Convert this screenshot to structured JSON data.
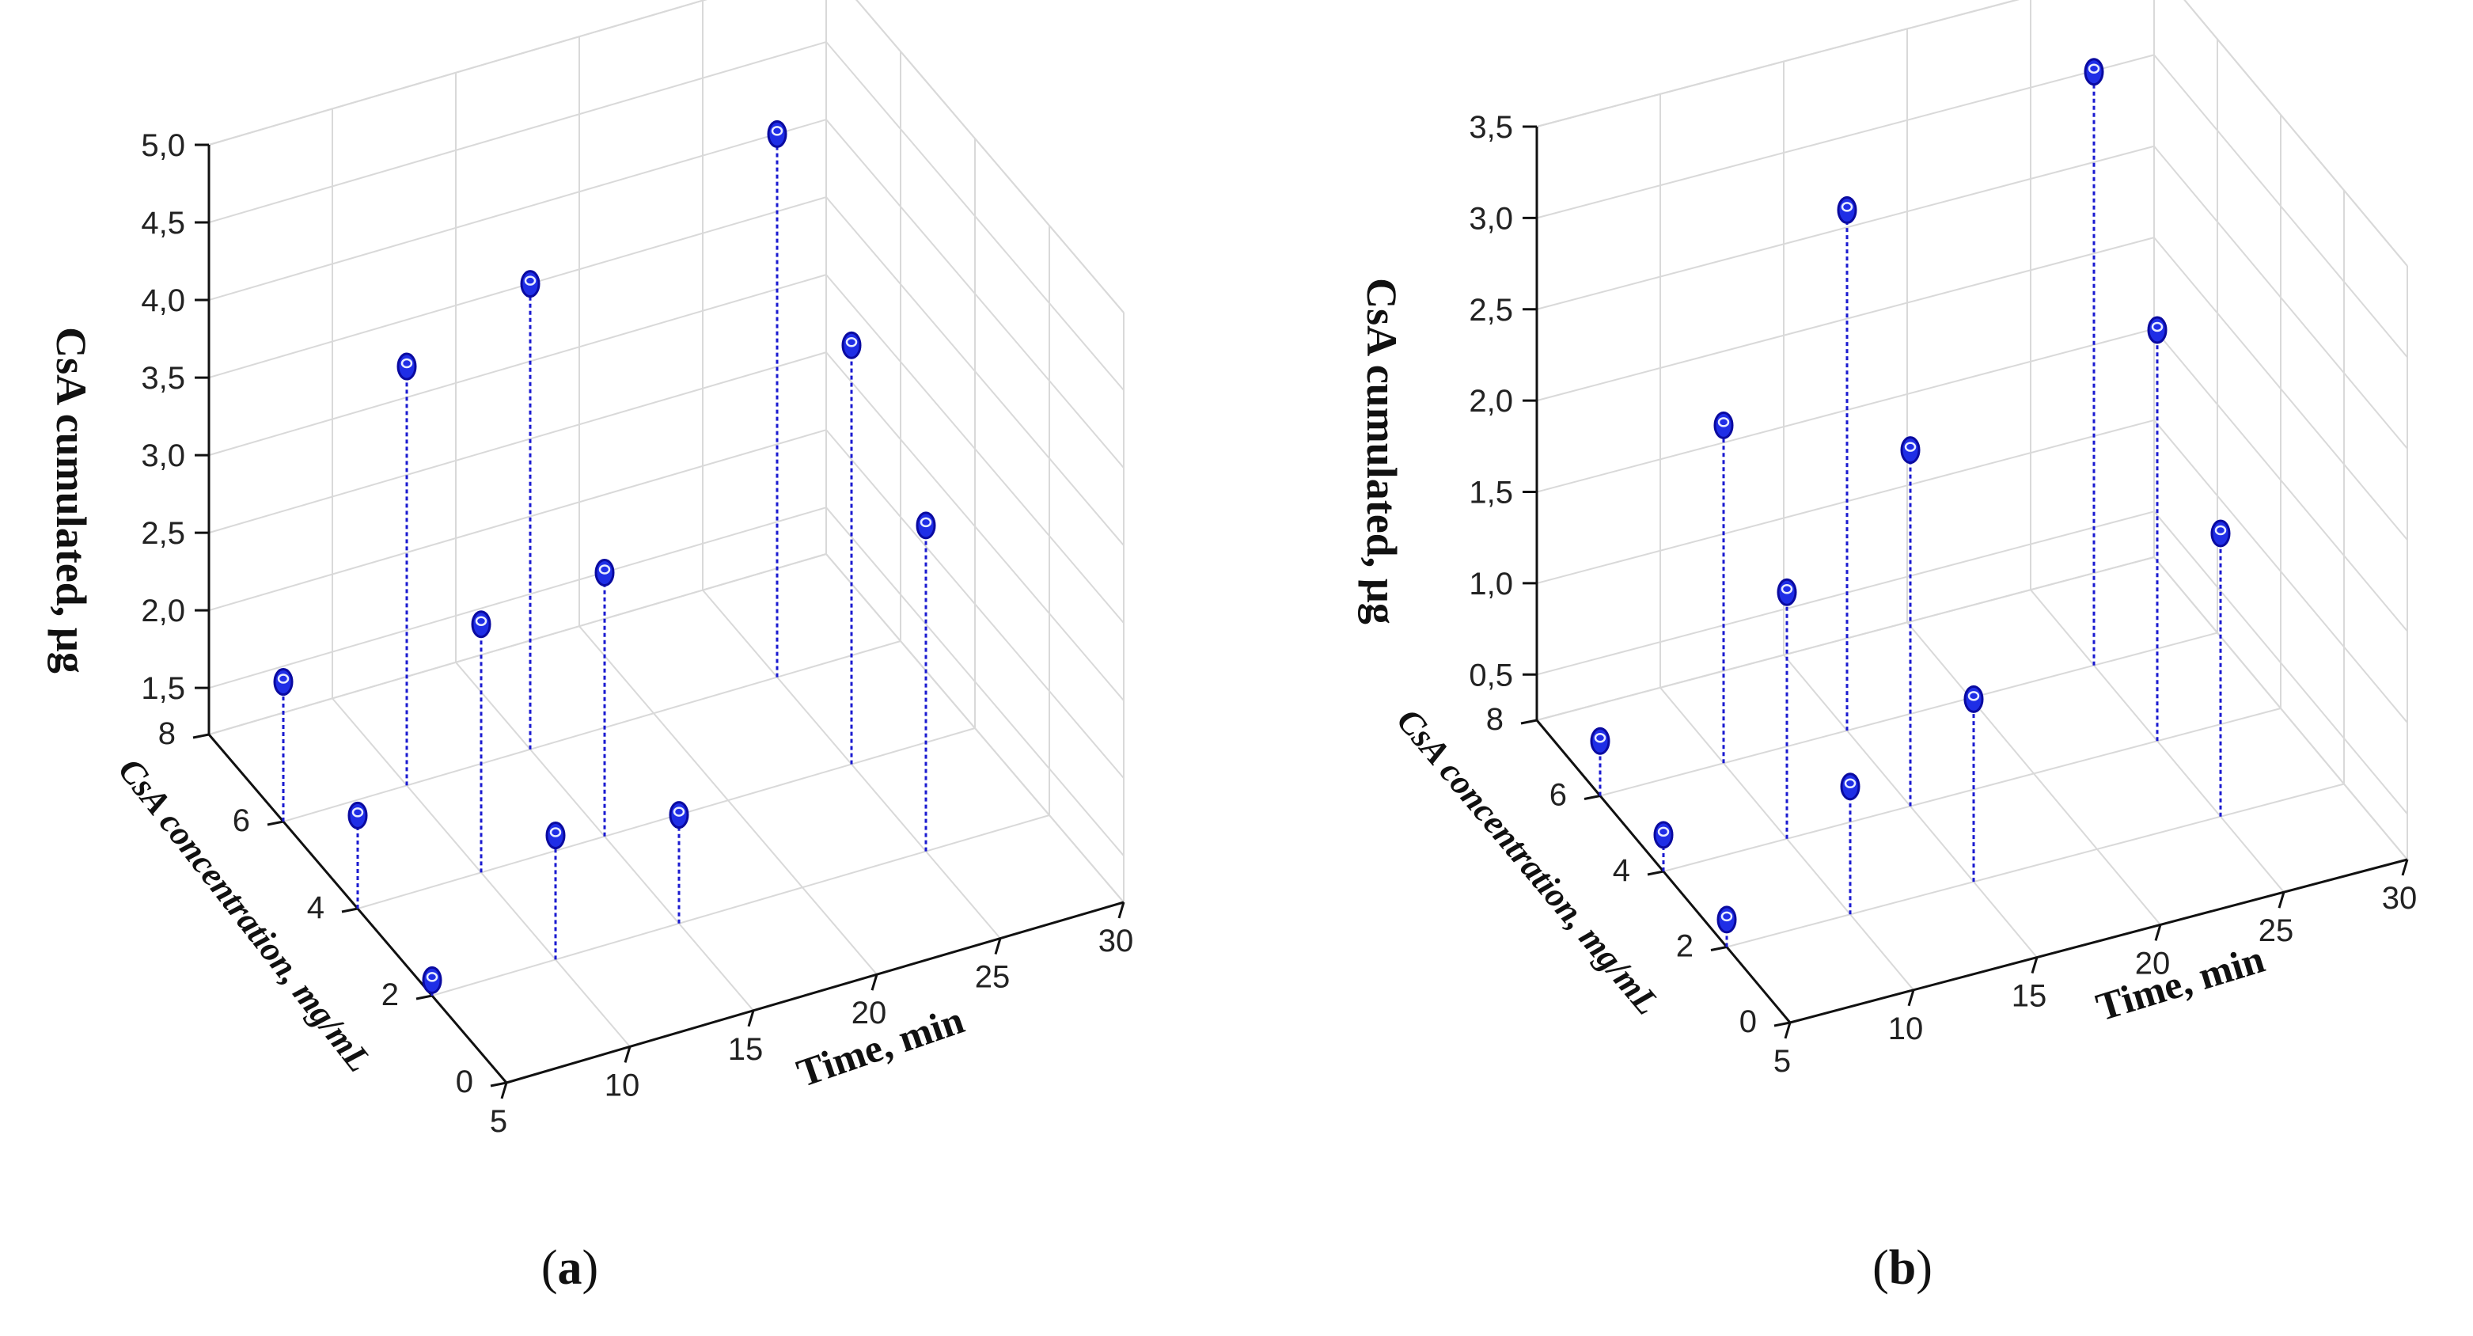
{
  "chart_data": [
    {
      "type": "scatter3d",
      "panel": "a",
      "panel_label_open": "(",
      "panel_label_letter": "a",
      "panel_label_close": ")",
      "xlabel": "Time, min",
      "ylabel": "CsA concentration, mg/mL",
      "zlabel": "CsA cumulated,  µg",
      "x_ticks": [
        "5",
        "10",
        "15",
        "20",
        "25",
        "30"
      ],
      "y_ticks": [
        "0",
        "2",
        "4",
        "6",
        "8"
      ],
      "z_ticks": [
        "1,5",
        "2,0",
        "2,5",
        "3,0",
        "3,5",
        "4,0",
        "4,5",
        "5,0"
      ],
      "xlim": [
        5,
        30
      ],
      "ylim": [
        0,
        8
      ],
      "zlim": [
        1.2,
        5.0
      ],
      "points": [
        {
          "x": 5,
          "y": 2,
          "z": 1.3
        },
        {
          "x": 5,
          "y": 4,
          "z": 1.8
        },
        {
          "x": 5,
          "y": 6,
          "z": 2.1
        },
        {
          "x": 10,
          "y": 2,
          "z": 2.0
        },
        {
          "x": 10,
          "y": 4,
          "z": 2.8
        },
        {
          "x": 10,
          "y": 6,
          "z": 3.9
        },
        {
          "x": 15,
          "y": 2,
          "z": 1.9
        },
        {
          "x": 15,
          "y": 4,
          "z": 2.9
        },
        {
          "x": 15,
          "y": 6,
          "z": 4.2
        },
        {
          "x": 25,
          "y": 2,
          "z": 3.3
        },
        {
          "x": 25,
          "y": 4,
          "z": 3.9
        },
        {
          "x": 25,
          "y": 6,
          "z": 4.7
        }
      ]
    },
    {
      "type": "scatter3d",
      "panel": "b",
      "panel_label_open": "(",
      "panel_label_letter": "b",
      "panel_label_close": ")",
      "xlabel": "Time, min",
      "ylabel": "CsA concentration, mg/mL",
      "zlabel": "CsA cumulated,  µg",
      "x_ticks": [
        "5",
        "10",
        "15",
        "20",
        "25",
        "30"
      ],
      "y_ticks": [
        "0",
        "2",
        "4",
        "6",
        "8"
      ],
      "z_ticks": [
        "0,5",
        "1,0",
        "1,5",
        "2,0",
        "2,5",
        "3,0",
        "3,5"
      ],
      "xlim": [
        5,
        30
      ],
      "ylim": [
        0,
        8
      ],
      "zlim": [
        0.25,
        3.5
      ],
      "points": [
        {
          "x": 5,
          "y": 2,
          "z": 0.4
        },
        {
          "x": 5,
          "y": 4,
          "z": 0.45
        },
        {
          "x": 5,
          "y": 6,
          "z": 0.55
        },
        {
          "x": 10,
          "y": 2,
          "z": 0.95
        },
        {
          "x": 10,
          "y": 4,
          "z": 1.6
        },
        {
          "x": 10,
          "y": 6,
          "z": 2.1
        },
        {
          "x": 15,
          "y": 2,
          "z": 1.25
        },
        {
          "x": 15,
          "y": 4,
          "z": 2.2
        },
        {
          "x": 15,
          "y": 6,
          "z": 3.1
        },
        {
          "x": 25,
          "y": 2,
          "z": 1.8
        },
        {
          "x": 25,
          "y": 4,
          "z": 2.5
        },
        {
          "x": 25,
          "y": 6,
          "z": 3.5
        }
      ]
    }
  ]
}
